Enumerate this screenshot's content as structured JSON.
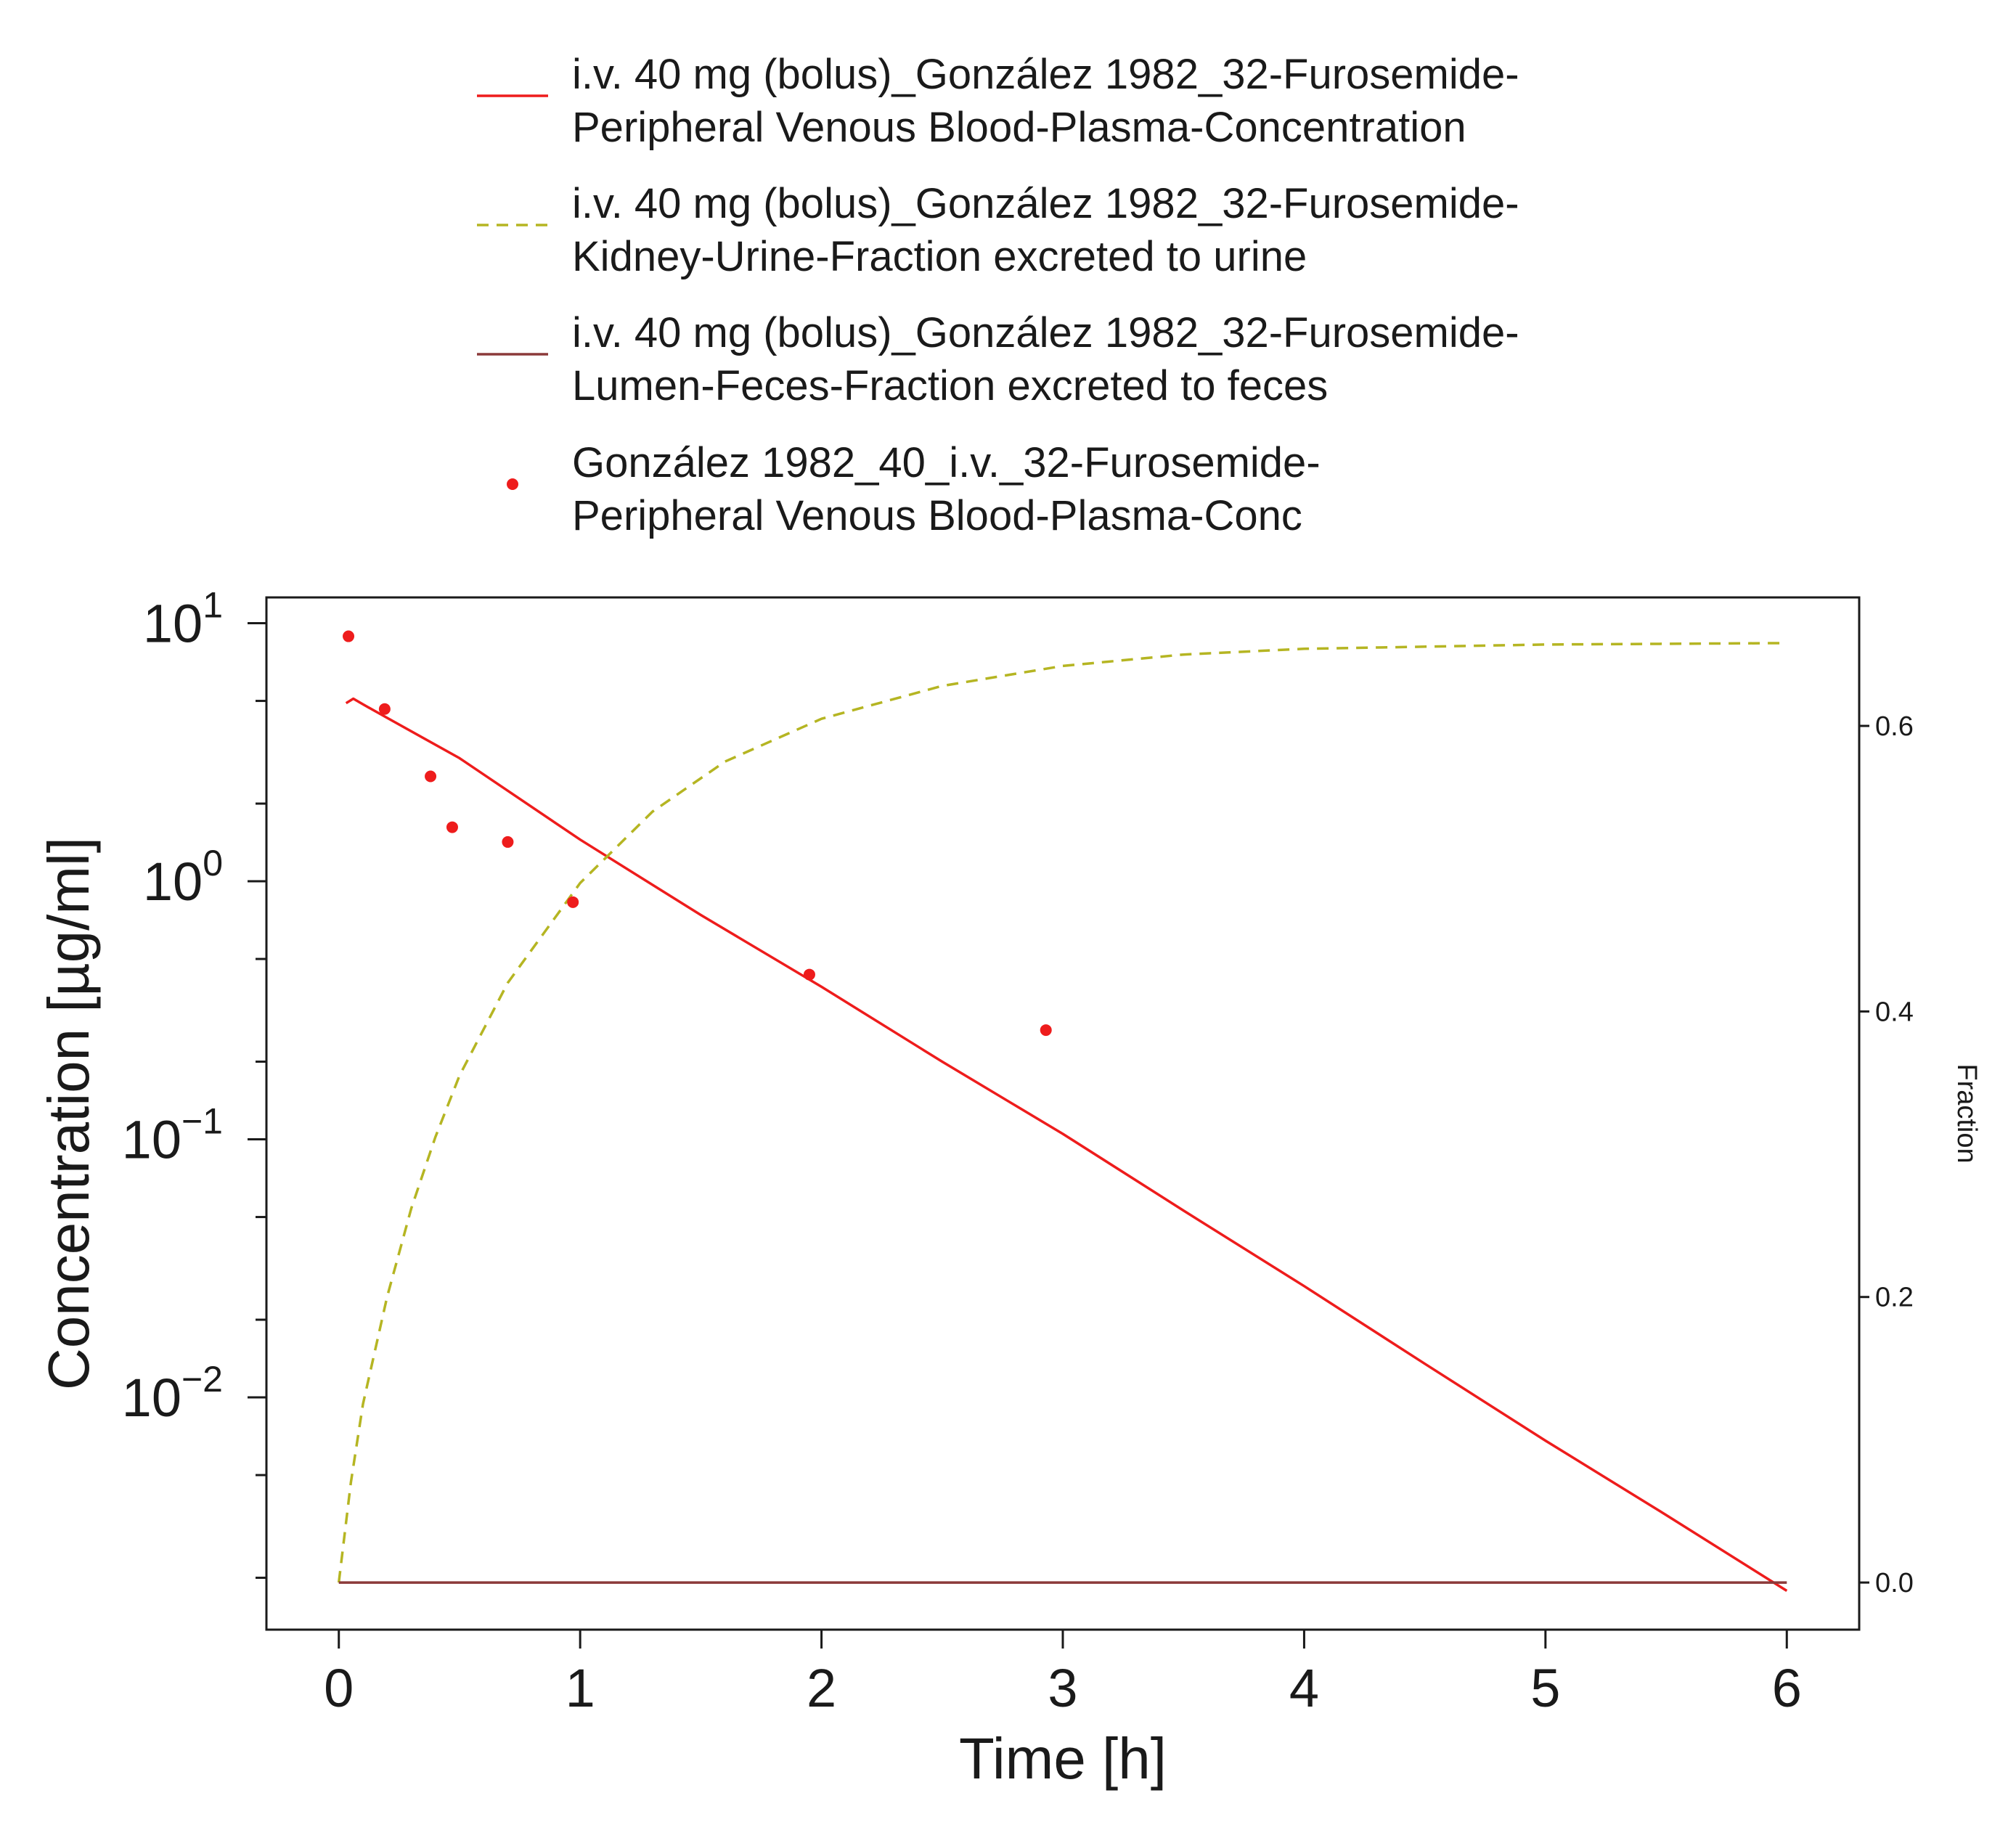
{
  "chart_data": {
    "type": "line",
    "xlabel": "Time [h]",
    "ylabel": "Concentration [µg/ml]",
    "y2label": "Fraction",
    "x_ticks": [
      0,
      1,
      2,
      3,
      4,
      5,
      6
    ],
    "y_log_ticks": [
      {
        "base": "10",
        "exp": "1",
        "value": 10
      },
      {
        "base": "10",
        "exp": "0",
        "value": 1
      },
      {
        "base": "10",
        "exp": "−1",
        "value": 0.1
      },
      {
        "base": "10",
        "exp": "−2",
        "value": 0.01
      }
    ],
    "y2_ticks": [
      "0.0",
      "0.2",
      "0.4",
      "0.6"
    ],
    "xlim": [
      -0.3,
      6.3
    ],
    "ylim_log10": [
      -2.9,
      1.1
    ],
    "y2lim": [
      -0.033,
      0.69
    ],
    "grid": false,
    "legend_position": "top",
    "series": [
      {
        "name": "i.v. 40 mg (bolus)_González 1982_32-Furosemide-Peripheral Venous Blood-Plasma-Concentration",
        "legend_lines": [
          "i.v. 40 mg (bolus)_González 1982_32-Furosemide-",
          "Peripheral Venous Blood-Plasma-Concentration"
        ],
        "axis": "left",
        "style": "solid",
        "color": "#ee1c1c",
        "x": [
          0.03,
          0.06,
          0.1,
          0.2,
          0.5,
          1.0,
          1.5,
          2.0,
          2.5,
          3.0,
          3.5,
          4.0,
          4.5,
          5.0,
          5.5,
          6.0
        ],
        "y": [
          4.9,
          5.1,
          4.85,
          4.3,
          3.0,
          1.45,
          0.74,
          0.39,
          0.2,
          0.105,
          0.053,
          0.027,
          0.0135,
          0.0068,
          0.0035,
          0.00178
        ]
      },
      {
        "name": "i.v. 40 mg (bolus)_González 1982_32-Furosemide-Kidney-Urine-Fraction excreted to urine",
        "legend_lines": [
          "i.v. 40 mg (bolus)_González 1982_32-Furosemide-",
          "Kidney-Urine-Fraction excreted to urine"
        ],
        "axis": "right",
        "style": "dashed",
        "color": "#b5b522",
        "x": [
          0,
          0.05,
          0.1,
          0.2,
          0.3,
          0.4,
          0.5,
          0.7,
          1.0,
          1.3,
          1.6,
          2.0,
          2.5,
          3.0,
          3.5,
          4.0,
          5.0,
          6.0
        ],
        "y": [
          0.0,
          0.07,
          0.125,
          0.2,
          0.262,
          0.312,
          0.355,
          0.42,
          0.49,
          0.54,
          0.575,
          0.605,
          0.628,
          0.642,
          0.65,
          0.654,
          0.657,
          0.658
        ]
      },
      {
        "name": "i.v. 40 mg (bolus)_González 1982_32-Furosemide-Lumen-Feces-Fraction excreted to feces",
        "legend_lines": [
          "i.v. 40 mg (bolus)_González 1982_32-Furosemide-",
          "Lumen-Feces-Fraction excreted to feces"
        ],
        "axis": "right",
        "style": "solid",
        "color": "#8b3a3a",
        "x": [
          0,
          6.0
        ],
        "y": [
          0.0,
          0.0
        ]
      },
      {
        "name": "González 1982_40_i.v._32-Furosemide-Peripheral Venous Blood-Plasma-Conc",
        "legend_lines": [
          "González 1982_40_i.v._32-Furosemide-",
          "Peripheral Venous Blood-Plasma-Conc"
        ],
        "axis": "left",
        "style": "points",
        "color": "#ee1c1c",
        "x": [
          0.04,
          0.19,
          0.38,
          0.47,
          0.7,
          0.97,
          1.95,
          2.93
        ],
        "y": [
          8.9,
          4.65,
          2.55,
          1.62,
          1.42,
          0.83,
          0.435,
          0.265
        ]
      }
    ]
  }
}
